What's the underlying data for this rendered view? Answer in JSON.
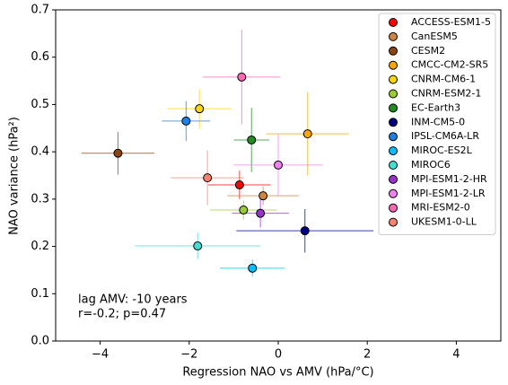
{
  "chart_data": {
    "type": "scatter",
    "xlabel": "Regression NAO vs AMV (hPa/°C)",
    "ylabel": "NAO variance (hPa²)",
    "annotations": [
      "lag AMV: -10 years",
      "r=-0.2; p=0.47"
    ],
    "xlim": [
      -5,
      5
    ],
    "xticks": [
      {
        "value": -4,
        "label": "−4"
      },
      {
        "value": -2,
        "label": "−2"
      },
      0,
      2,
      4
    ],
    "ylim": [
      0,
      0.7
    ],
    "yticks": [
      {
        "value": 0,
        "label": "0.0"
      },
      0.1,
      0.2,
      0.3,
      0.4,
      0.5,
      0.6,
      0.7
    ],
    "legend": "upper right",
    "series": [
      {
        "name": "ACCESS-ESM1-5",
        "color": "#ff0000",
        "x": [
          -0.87
        ],
        "values": [
          0.33
        ],
        "xerr": [
          0.7
        ],
        "yerr": [
          0.03
        ]
      },
      {
        "name": "CanESM5",
        "color": "#cd853f",
        "x": [
          -0.34
        ],
        "values": [
          0.307
        ],
        "xerr": [
          0.8
        ],
        "yerr": [
          0.02
        ]
      },
      {
        "name": "CESM2",
        "color": "#8b4513",
        "x": [
          -3.6
        ],
        "values": [
          0.397
        ],
        "xerr": [
          0.82
        ],
        "yerr": [
          0.045
        ]
      },
      {
        "name": "CMCC-CM2-SR5",
        "color": "#ffa500",
        "x": [
          0.66
        ],
        "values": [
          0.438
        ],
        "xerr": [
          0.93
        ],
        "yerr": [
          0.088
        ]
      },
      {
        "name": "CNRM-CM6-1",
        "color": "#ffd700",
        "x": [
          -1.77
        ],
        "values": [
          0.491
        ],
        "xerr": [
          0.72
        ],
        "yerr": [
          0.042
        ]
      },
      {
        "name": "CNRM-ESM2-1",
        "color": "#9acd32",
        "x": [
          -0.78
        ],
        "values": [
          0.277
        ],
        "xerr": [
          0.75
        ],
        "yerr": [
          0.02
        ]
      },
      {
        "name": "EC-Earth3",
        "color": "#228b22",
        "x": [
          -0.6
        ],
        "values": [
          0.425
        ],
        "xerr": [
          0.4
        ],
        "yerr": [
          0.068
        ]
      },
      {
        "name": "INM-CM5-0",
        "color": "#000080",
        "x": [
          0.6
        ],
        "values": [
          0.233
        ],
        "xerr": [
          1.54
        ],
        "yerr": [
          0.046
        ]
      },
      {
        "name": "IPSL-CM6A-LR",
        "color": "#1e80e0",
        "x": [
          -2.07
        ],
        "values": [
          0.465
        ],
        "xerr": [
          0.54
        ],
        "yerr": [
          0.042
        ]
      },
      {
        "name": "MIROC-ES2L",
        "color": "#00bfff",
        "x": [
          -0.58
        ],
        "values": [
          0.154
        ],
        "xerr": [
          0.73
        ],
        "yerr": [
          0.017
        ]
      },
      {
        "name": "MIROC6",
        "color": "#40e0d0",
        "x": [
          -1.81
        ],
        "values": [
          0.201
        ],
        "xerr": [
          1.41
        ],
        "yerr": [
          0.028
        ]
      },
      {
        "name": "MPI-ESM1-2-HR",
        "color": "#9932cc",
        "x": [
          -0.4
        ],
        "values": [
          0.27
        ],
        "xerr": [
          0.64
        ],
        "yerr": [
          0.03
        ]
      },
      {
        "name": "MPI-ESM1-2-LR",
        "color": "#ee82ee",
        "x": [
          0.0
        ],
        "values": [
          0.372
        ],
        "xerr": [
          1.0
        ],
        "yerr": [
          0.065
        ]
      },
      {
        "name": "MRI-ESM2-0",
        "color": "#ff69b4",
        "x": [
          -0.82
        ],
        "values": [
          0.558
        ],
        "xerr": [
          0.87
        ],
        "yerr": [
          0.1
        ]
      },
      {
        "name": "UKESM1-0-LL",
        "color": "#fa8072",
        "x": [
          -1.59
        ],
        "values": [
          0.345
        ],
        "xerr": [
          0.82
        ],
        "yerr": [
          0.058
        ]
      }
    ]
  }
}
